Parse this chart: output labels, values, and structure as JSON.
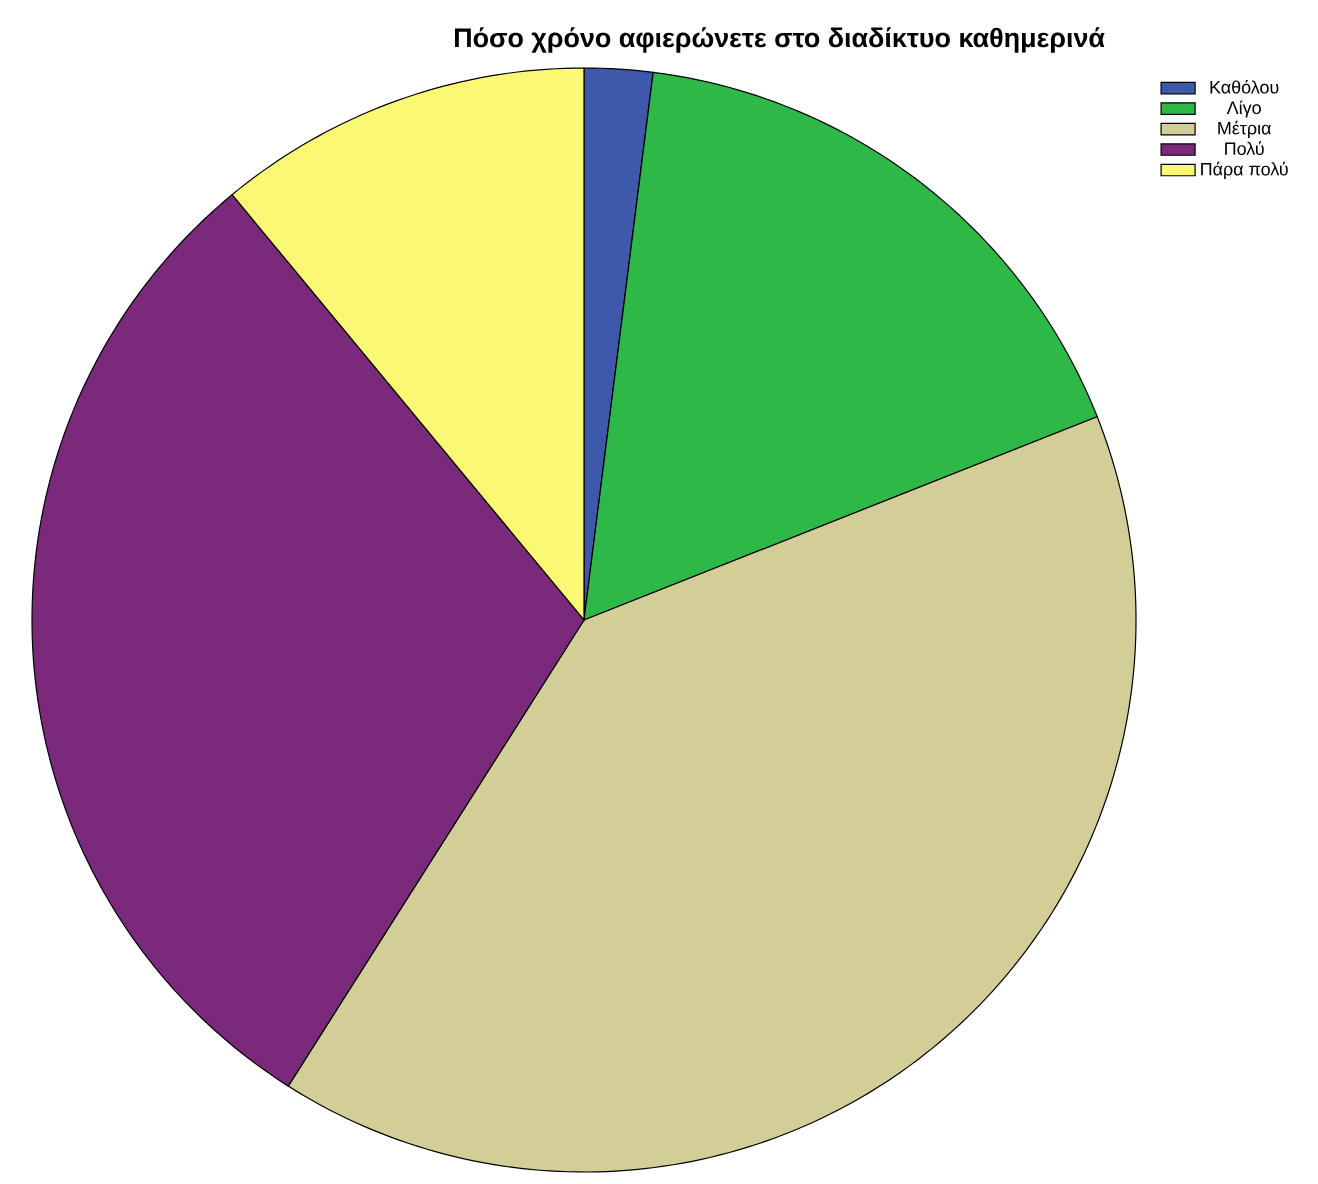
{
  "chart_data": {
    "type": "pie",
    "title": "Πόσο χρόνο αφιερώνετε στο διαδίκτυο καθημερινά",
    "categories": [
      "Καθόλου",
      "Λίγο",
      "Μέτρια",
      "Πολύ",
      "Πάρα πολύ"
    ],
    "values": [
      2,
      17,
      40,
      30,
      11
    ],
    "colors": [
      "#3e58ac",
      "#2eb848",
      "#d3ce97",
      "#7b2a7b",
      "#fbf873"
    ],
    "legend": "top right"
  }
}
